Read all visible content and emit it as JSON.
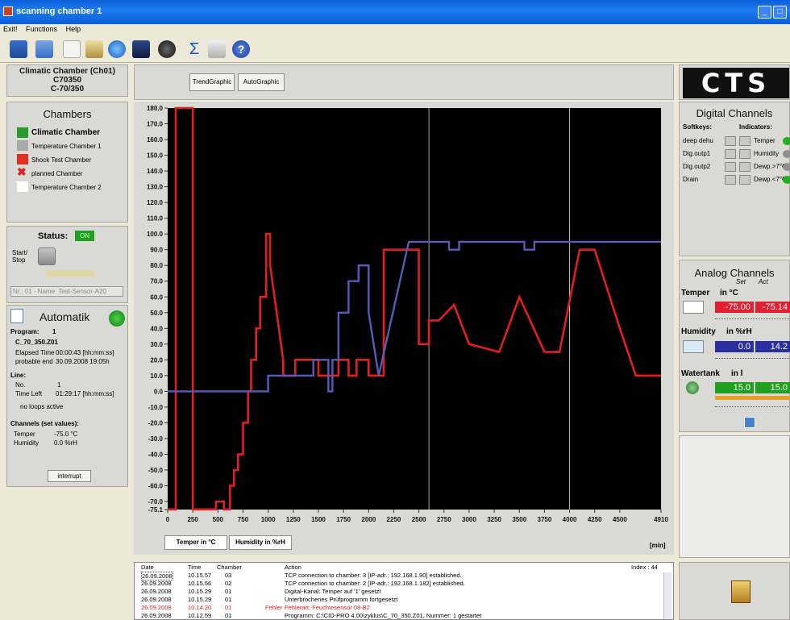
{
  "window": {
    "title": "scanning chamber 1"
  },
  "menu": [
    "Exit!",
    "Functions",
    "Help"
  ],
  "chamber_header": {
    "line1": "Climatic Chamber (Ch01)",
    "line2": "C70350",
    "line3": "C-70/350"
  },
  "chambers": {
    "title": "Chambers",
    "items": [
      {
        "label": "Climatic Chamber",
        "color": "#2a9a2a"
      },
      {
        "label": "Temperature Chamber 1",
        "color": "#a8a8a8"
      },
      {
        "label": "Shock Test Chamber",
        "color": "#e03020"
      },
      {
        "label": "planned Chamber",
        "color": "#e02020"
      },
      {
        "label": "Temperature Chamber 2",
        "color": "#ffffff"
      }
    ]
  },
  "status": {
    "label": "Status:",
    "value": "ON",
    "start_stop": "Start/\nStop",
    "program_select": "Nr.: 01 - Name: Test-Sensor-A20"
  },
  "automatik": {
    "title": "Automatik",
    "program_label": "Program:",
    "program_no": "1",
    "program_name": "C_70_350.Z01",
    "elapsed_label": "Elapsed Time",
    "elapsed_value": "00:00:43 [hh:mm:ss]",
    "end_label": "probable end",
    "end_value": "30.09.2008 19:05h",
    "line_label": "Line:",
    "no_label": "No.",
    "no_value": "1",
    "timeleft_label": "Time Left",
    "timeleft_value": "01:29:17 [hh:mm:ss]",
    "loops": "no loops active",
    "channels_label": "Channels (set values):",
    "ch1_name": "Temper",
    "ch1_value": "-75.0 °C",
    "ch2_name": "Humidity",
    "ch2_value": "0.0 %rH",
    "interrupt": "interrupt"
  },
  "chart_tabs": [
    "TrendGraphic",
    "AutoGraphic"
  ],
  "legend_buttons": [
    "Temper in °C",
    "Humidity in %rH"
  ],
  "chart_data": {
    "type": "line",
    "xlabel": "[min]",
    "x_ticks": [
      0,
      250,
      500,
      750,
      1000,
      1250,
      1500,
      1750,
      2000,
      2250,
      2500,
      2750,
      3000,
      3250,
      3500,
      3750,
      4000,
      4250,
      4500,
      4910
    ],
    "y_ticks": [
      180,
      170,
      160,
      150,
      140,
      130,
      120,
      110,
      100,
      90,
      80,
      70,
      60,
      50,
      40,
      30,
      20,
      10,
      0,
      -10,
      -20,
      -30,
      -40,
      -50,
      -60,
      -70,
      -75.1
    ],
    "xlim": [
      0,
      4910
    ],
    "ylim": [
      -75.1,
      180
    ],
    "markers_x": [
      2600,
      4000
    ],
    "series": [
      {
        "name": "Temper in °C",
        "color": "#e02020",
        "x": [
          0,
          80,
          80,
          250,
          250,
          330,
          330,
          480,
          480,
          560,
          560,
          620,
          620,
          660,
          660,
          700,
          700,
          750,
          750,
          800,
          800,
          830,
          830,
          880,
          880,
          920,
          920,
          980,
          980,
          1020,
          1020,
          1150,
          1150,
          1270,
          1270,
          1330,
          1330,
          1500,
          1500,
          1700,
          1700,
          1800,
          1800,
          1880,
          1880,
          2000,
          2000,
          2150,
          2150,
          2500,
          2500,
          2600,
          2600,
          2700,
          2850,
          3000,
          3300,
          3500,
          3750,
          3900,
          4100,
          4250,
          4500,
          4660,
          4660,
          4910
        ],
        "y": [
          -75,
          -75,
          180,
          180,
          -75,
          -75,
          -75,
          -75,
          -70,
          -70,
          -75,
          -75,
          -60,
          -60,
          -50,
          -50,
          -40,
          -40,
          -20,
          -20,
          0,
          0,
          20,
          20,
          40,
          40,
          60,
          60,
          100,
          100,
          80,
          20,
          10,
          10,
          20,
          20,
          20,
          20,
          10,
          10,
          20,
          20,
          10,
          10,
          20,
          20,
          10,
          10,
          90,
          90,
          30,
          30,
          45,
          45,
          55,
          30,
          25,
          60,
          25,
          25,
          90,
          90,
          40,
          10,
          10,
          10
        ]
      },
      {
        "name": "Humidity in %rH",
        "color": "#5a5ab8",
        "x": [
          0,
          1000,
          1000,
          1100,
          1100,
          1220,
          1220,
          1450,
          1450,
          1600,
          1600,
          1640,
          1640,
          1700,
          1700,
          1800,
          1800,
          1900,
          1900,
          2000,
          2000,
          2100,
          2100,
          2400,
          2400,
          2800,
          2800,
          2900,
          2900,
          3550,
          3550,
          3650,
          3650,
          4910
        ],
        "y": [
          0,
          0,
          10,
          10,
          10,
          10,
          10,
          10,
          20,
          20,
          0,
          0,
          20,
          20,
          50,
          50,
          70,
          70,
          80,
          80,
          50,
          10,
          10,
          95,
          95,
          95,
          90,
          90,
          95,
          95,
          90,
          90,
          95,
          95
        ]
      }
    ]
  },
  "log": {
    "headers": [
      "Date",
      "Time",
      "Chamber",
      "Action"
    ],
    "index": "Index : 44",
    "rows": [
      [
        "26.09.2008",
        "10.15.57",
        "03",
        "",
        "TCP connection to chamber: 3 [IP-adr.: 192.168.1.90] established."
      ],
      [
        "26.09.2008",
        "10.15.56",
        "02",
        "",
        "TCP connection to chamber: 2 [IP-adr.: 192.168.1.182] established."
      ],
      [
        "26.09.2008",
        "10.15.29",
        "01",
        "",
        "Digital-Kanal: Temper auf '1' gesetzt"
      ],
      [
        "26.09.2008",
        "10.15.29",
        "01",
        "",
        "Unterbrochenes Prüfprogramm fortgesetzt"
      ],
      [
        "26.09.2008",
        "10.14.20",
        "01",
        "Fehler",
        "Fehlerart: Feuchtesensor 08-B2"
      ],
      [
        "26.09.2008",
        "10.12.59",
        "01",
        "",
        "Programm: C:\\CID-PRO 4.00\\zyklus\\C_70_350.Z01, Nummer: 1 gestartet"
      ]
    ]
  },
  "digital": {
    "title": "Digital Channels",
    "softkeys_label": "Softkeys:",
    "indicators_label": "Indicators:",
    "softkeys": [
      "deep dehu",
      "Dig.outp1",
      "Dig.outp2",
      "Drain"
    ],
    "indicators": [
      "Temper",
      "Humidity",
      "Dewp.>7°C",
      "Dewp.<7°C"
    ]
  },
  "analog": {
    "title": "Analog Channels",
    "set_label": "Set",
    "act_label": "Act",
    "ch1": {
      "name": "Temper",
      "unit": "in °C",
      "set": "-75.00",
      "act": "-75.14"
    },
    "ch2": {
      "name": "Humidity",
      "unit": "in %rH",
      "set": "0.0",
      "act": "14.2"
    },
    "ch3": {
      "name": "Watertank",
      "unit": "in l",
      "set": "15.0",
      "act": "15.0"
    }
  },
  "logo": "CTS"
}
